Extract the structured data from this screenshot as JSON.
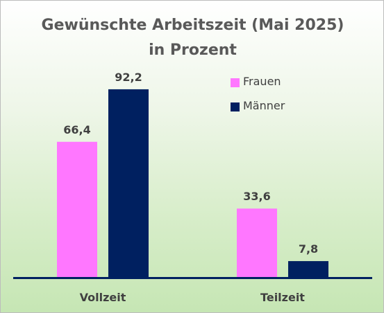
{
  "chart_data": {
    "type": "bar",
    "title": "Gewünschte Arbeitszeit (Mai 2025)",
    "subtitle": "in Prozent",
    "categories": [
      "Vollzeit",
      "Teilzeit"
    ],
    "series": [
      {
        "name": "Frauen",
        "values": [
          66.4,
          33.6
        ],
        "labels": [
          "66,4",
          "33,6"
        ],
        "color": "#ff77ff"
      },
      {
        "name": "Männer",
        "values": [
          92.2,
          7.8
        ],
        "labels": [
          "92,2",
          "7,8"
        ],
        "color": "#002060"
      }
    ],
    "ylim": [
      0,
      100
    ],
    "grid": false,
    "legend_position": "top-right",
    "axis_color": "#002060",
    "title_color": "#595959"
  }
}
